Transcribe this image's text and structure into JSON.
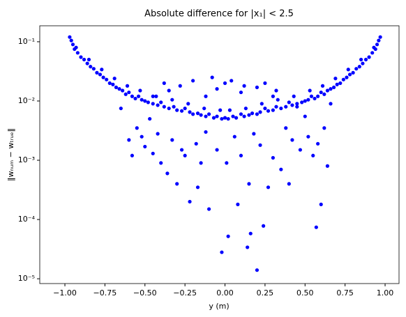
{
  "chart_data": {
    "type": "scatter",
    "title": "Absolute difference for |x₁| < 2.5",
    "x_label": "y (m)",
    "y_label": "‖wₙᵤₘ − wₜᵣᵤₑ‖",
    "y_scale": "log",
    "xlim": [
      -1.157,
      1.087
    ],
    "ylim": [
      8.3e-06,
      0.186
    ],
    "xticks": [
      {
        "value": -1,
        "label": "−1.00"
      },
      {
        "value": -0.75,
        "label": "−0.75"
      },
      {
        "value": -0.5,
        "label": "−0.50"
      },
      {
        "value": -0.25,
        "label": "−0.25"
      },
      {
        "value": 0,
        "label": "0.00"
      },
      {
        "value": 0.25,
        "label": "0.25"
      },
      {
        "value": 0.5,
        "label": "0.50"
      },
      {
        "value": 0.75,
        "label": "0.75"
      },
      {
        "value": 1,
        "label": "1.00"
      }
    ],
    "yticks": [
      {
        "value": 1e-05,
        "label": "10⁻⁵"
      },
      {
        "value": 0.0001,
        "label": "10⁻⁴"
      },
      {
        "value": 0.001,
        "label": "10⁻³"
      },
      {
        "value": 0.01,
        "label": "10⁻²"
      },
      {
        "value": 0.1,
        "label": "10⁻¹"
      }
    ],
    "series": [
      {
        "color": "#0000ff",
        "x": [
          -0.97,
          -0.96,
          -0.95,
          -0.94,
          -0.92,
          -0.9,
          -0.88,
          -0.86,
          -0.84,
          -0.82,
          -0.8,
          -0.78,
          -0.76,
          -0.74,
          -0.72,
          -0.7,
          -0.68,
          -0.66,
          -0.64,
          -0.62,
          -0.6,
          -0.58,
          -0.56,
          -0.54,
          -0.52,
          -0.5,
          -0.48,
          -0.45,
          -0.42,
          -0.4,
          -0.38,
          -0.35,
          -0.32,
          -0.3,
          -0.27,
          -0.25,
          -0.22,
          -0.2,
          -0.17,
          -0.15,
          -0.12,
          -0.1,
          -0.07,
          -0.05,
          -0.02,
          0,
          0.02,
          0.05,
          0.07,
          0.1,
          0.12,
          0.15,
          0.17,
          0.2,
          0.22,
          0.25,
          0.27,
          0.3,
          0.32,
          0.35,
          0.38,
          0.4,
          0.42,
          0.45,
          0.48,
          0.5,
          0.52,
          0.54,
          0.56,
          0.58,
          0.6,
          0.62,
          0.64,
          0.66,
          0.68,
          0.7,
          0.72,
          0.74,
          0.76,
          0.78,
          0.8,
          0.82,
          0.84,
          0.86,
          0.88,
          0.9,
          0.92,
          0.94,
          0.95,
          0.96,
          0.97,
          -0.93,
          -0.85,
          -0.77,
          -0.69,
          -0.61,
          -0.53,
          -0.43,
          -0.33,
          -0.23,
          -0.13,
          -0.03,
          0.03,
          0.13,
          0.23,
          0.33,
          0.43,
          0.53,
          0.61,
          0.69,
          0.77,
          0.85,
          0.93,
          -0.6,
          -0.58,
          -0.55,
          -0.52,
          -0.5,
          -0.47,
          -0.45,
          -0.42,
          -0.4,
          -0.38,
          -0.36,
          -0.33,
          -0.3,
          -0.28,
          -0.27,
          -0.25,
          -0.22,
          -0.2,
          -0.18,
          -0.17,
          -0.15,
          -0.12,
          -0.1,
          -0.08,
          -0.05,
          -0.02,
          0.01,
          0.02,
          0.04,
          0.06,
          0.08,
          0.1,
          0.12,
          0.14,
          0.15,
          0.16,
          0.18,
          0.2,
          0.22,
          0.24,
          0.25,
          0.27,
          0.3,
          0.32,
          0.35,
          0.38,
          0.4,
          0.42,
          0.45,
          0.47,
          0.5,
          0.52,
          0.55,
          0.57,
          0.58,
          0.6,
          0.62,
          0.64,
          -0.65,
          0.66,
          -0.35,
          0,
          -0.12,
          0.1,
          0.3,
          -0.45,
          -0.05,
          0.2
        ],
        "values": [
          0.12,
          0.105,
          0.09,
          0.075,
          0.065,
          0.055,
          0.05,
          0.043,
          0.038,
          0.035,
          0.03,
          0.028,
          0.025,
          0.023,
          0.02,
          0.019,
          0.017,
          0.016,
          0.015,
          0.013,
          0.014,
          0.012,
          0.011,
          0.012,
          0.0105,
          0.01,
          0.0095,
          0.009,
          0.0085,
          0.0095,
          0.008,
          0.0075,
          0.008,
          0.007,
          0.0068,
          0.0075,
          0.0065,
          0.006,
          0.0062,
          0.0058,
          0.0055,
          0.006,
          0.0052,
          0.0055,
          0.005,
          0.0052,
          0.005,
          0.0055,
          0.0052,
          0.006,
          0.0055,
          0.0058,
          0.0062,
          0.006,
          0.0065,
          0.0075,
          0.0068,
          0.007,
          0.008,
          0.0075,
          0.008,
          0.0095,
          0.0085,
          0.009,
          0.0095,
          0.01,
          0.0105,
          0.012,
          0.011,
          0.012,
          0.014,
          0.013,
          0.015,
          0.016,
          0.017,
          0.019,
          0.02,
          0.023,
          0.025,
          0.028,
          0.03,
          0.035,
          0.038,
          0.043,
          0.05,
          0.055,
          0.065,
          0.075,
          0.09,
          0.105,
          0.12,
          0.08,
          0.05,
          0.034,
          0.024,
          0.018,
          0.015,
          0.012,
          0.0105,
          0.009,
          0.0075,
          0.007,
          0.007,
          0.0075,
          0.009,
          0.0105,
          0.012,
          0.015,
          0.018,
          0.024,
          0.034,
          0.05,
          0.08,
          0.0022,
          0.0012,
          0.0035,
          0.0025,
          0.0017,
          0.005,
          0.0013,
          0.0028,
          0.0009,
          0.02,
          0.0006,
          0.0022,
          0.0004,
          0.018,
          0.0015,
          0.0012,
          0.0002,
          0.022,
          0.0019,
          0.00035,
          0.0009,
          0.003,
          0.00015,
          0.025,
          0.0015,
          2.8e-05,
          0.0009,
          5.2e-05,
          0.022,
          0.0025,
          0.00018,
          0.0012,
          0.018,
          3.4e-05,
          0.0004,
          5.8e-05,
          0.0028,
          1.4e-05,
          0.0018,
          7.8e-05,
          0.02,
          0.00035,
          0.0011,
          0.015,
          0.0007,
          0.0035,
          0.0004,
          0.0022,
          0.008,
          0.0015,
          0.0055,
          0.0025,
          0.0012,
          7.4e-05,
          0.0019,
          0.00018,
          0.0035,
          0.0008,
          0.0075,
          0.009,
          0.015,
          0.02,
          0.012,
          0.014,
          0.012,
          0.012,
          0.016,
          0.017
        ]
      }
    ]
  }
}
